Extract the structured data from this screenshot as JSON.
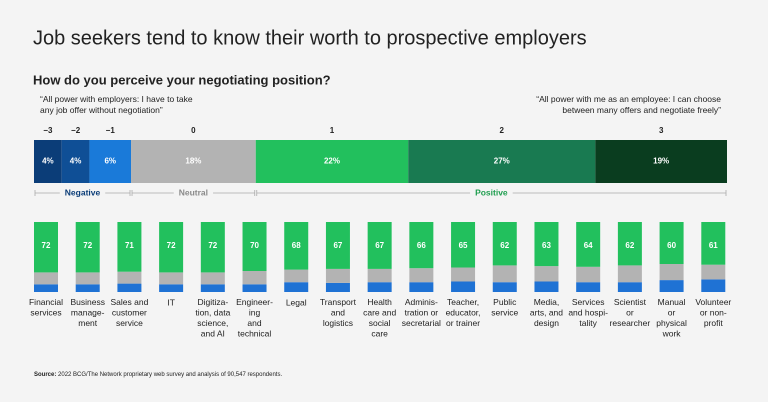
{
  "title": "Job seekers tend to know their worth to prospective employers",
  "source_label": "Source:",
  "source": "2022 BCG/The Network proprietary web survey and analysis of 90,547 respondents.",
  "chart_data": [
    {
      "type": "stacked-bar-100",
      "title": "How do you perceive your negotiating position?",
      "left_annotation": "“All power with employers: I have to take\nany job offer without negotiation”",
      "right_annotation": "“All power with me as an employee: I can choose\nbetween many offers and negotiate freely”",
      "categories": [
        "−3",
        "−2",
        "−1",
        "0",
        "1",
        "2",
        "3"
      ],
      "values": [
        4,
        4,
        6,
        18,
        22,
        27,
        19
      ],
      "value_labels": [
        "4%",
        "4%",
        "6%",
        "18%",
        "22%",
        "27%",
        "19%"
      ],
      "colors": [
        "#0b3d78",
        "#0f4f96",
        "#1a7ad9",
        "#b3b3b3",
        "#22c05d",
        "#197a51",
        "#0a3d1f"
      ],
      "groups": [
        {
          "name": "Negative",
          "color": "#0b3d78",
          "categories": [
            "−3",
            "−2",
            "−1"
          ]
        },
        {
          "name": "Neutral",
          "color": "#8a8a8a",
          "categories": [
            "0"
          ]
        },
        {
          "name": "Positive",
          "color": "#1f9e4f",
          "categories": [
            "1",
            "2",
            "3"
          ]
        }
      ]
    },
    {
      "type": "stacked-bar",
      "categories": [
        "Financial\nservices",
        "Business\nmanage-\nment",
        "Sales and\ncustomer\nservice",
        "IT",
        "Digitiza-\ntion, data\nscience,\nand AI",
        "Engineer-\ning\nand\ntechnical",
        "Legal",
        "Transport\nand\nlogistics",
        "Health\ncare and\nsocial\ncare",
        "Adminis-\ntration or\nsecretarial",
        "Teacher,\neducator,\nor trainer",
        "Public\nservice",
        "Media,\narts, and\ndesign",
        "Services\nand hospi-\ntality",
        "Scientist\nor\nresearcher",
        "Manual\nor\nphysical\nwork",
        "Volunteer\nor non-\nprofit"
      ],
      "ylim": [
        0,
        100
      ],
      "series": [
        {
          "color": "#1f72d4",
          "values": [
            11,
            11,
            12,
            11,
            11,
            11,
            14,
            13,
            14,
            14,
            15,
            14,
            15,
            14,
            14,
            17,
            18
          ]
        },
        {
          "color": "#b3b3b3",
          "values": [
            17,
            17,
            17,
            17,
            17,
            19,
            18,
            20,
            19,
            20,
            20,
            24,
            22,
            22,
            24,
            23,
            21
          ]
        },
        {
          "color": "#22c05d",
          "show_labels": true,
          "values": [
            72,
            72,
            71,
            72,
            72,
            70,
            68,
            67,
            67,
            66,
            65,
            62,
            63,
            64,
            62,
            60,
            61
          ]
        }
      ]
    }
  ]
}
